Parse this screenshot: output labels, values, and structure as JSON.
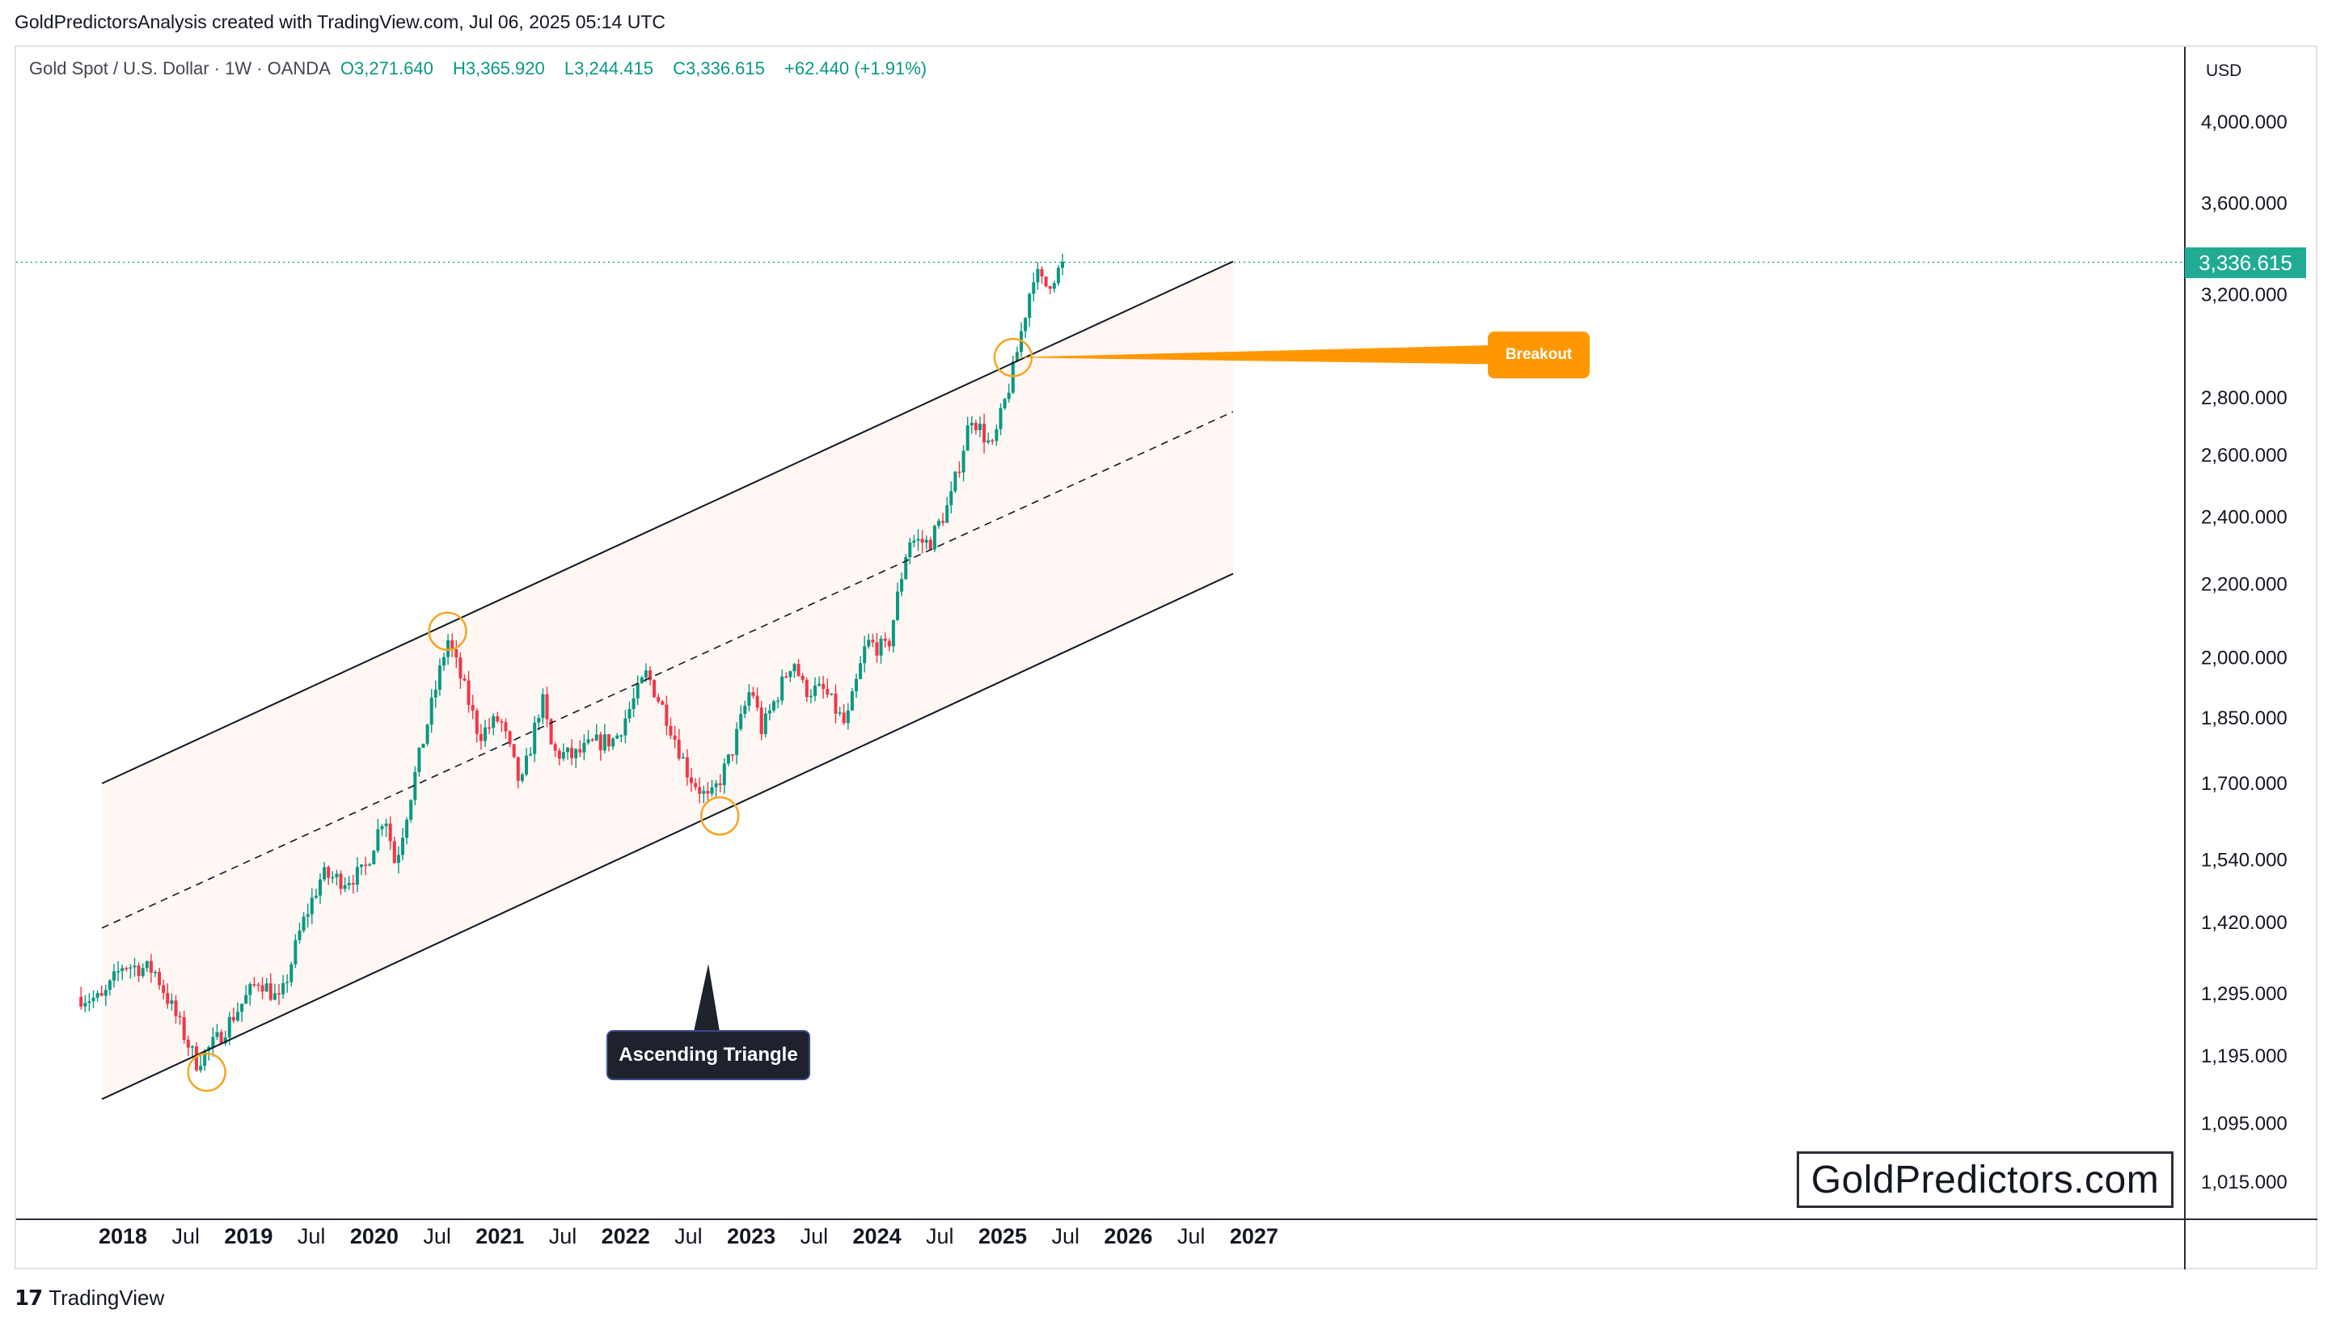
{
  "header": {
    "attribution": "GoldPredictorsAnalysis created with TradingView.com, Jul 06, 2025 05:14 UTC"
  },
  "legend": {
    "symbol": "Gold Spot / U.S. Dollar · 1W · OANDA",
    "open": "O3,271.640",
    "high": "H3,365.920",
    "low": "L3,244.415",
    "close": "C3,336.615",
    "change": "+62.440 (+1.91%)"
  },
  "price_axis": {
    "currency": "USD",
    "current_price_label": "3,336.615"
  },
  "annotations": {
    "ascending_triangle": "Ascending Triangle",
    "breakout": "Breakout"
  },
  "watermark": "GoldPredictors.com",
  "footer": {
    "brand": "TradingView"
  },
  "colors": {
    "up": "#089981",
    "down": "#f23645",
    "channel_fill": "#fdf3ef",
    "highlight_circle": "#f5a623",
    "current_price": "#22ab94"
  },
  "chart_data": {
    "type": "candlestick",
    "symbol": "XAU/USD",
    "timeframe": "1W",
    "y_scale": "log",
    "y_ticks": [
      "4,000.000",
      "3,600.000",
      "3,200.000",
      "2,800.000",
      "2,600.000",
      "2,400.000",
      "2,200.000",
      "2,000.000",
      "1,850.000",
      "1,700.000",
      "1,540.000",
      "1,420.000",
      "1,295.000",
      "1,195.000",
      "1,095.000",
      "1,015.000"
    ],
    "y_tick_values": [
      4000,
      3600,
      3200,
      2800,
      2600,
      2400,
      2200,
      2000,
      1850,
      1700,
      1540,
      1420,
      1295,
      1195,
      1095,
      1015
    ],
    "x_ticks": [
      "2018",
      "Jul",
      "2019",
      "Jul",
      "2020",
      "Jul",
      "2021",
      "Jul",
      "2022",
      "Jul",
      "2023",
      "Jul",
      "2024",
      "Jul",
      "2025",
      "Jul",
      "2026",
      "Jul",
      "2027"
    ],
    "price_path": [
      {
        "x": "2017-09",
        "y": 1290
      },
      {
        "x": "2017-11",
        "y": 1285
      },
      {
        "x": "2018-01",
        "y": 1345
      },
      {
        "x": "2018-04",
        "y": 1335
      },
      {
        "x": "2018-06",
        "y": 1260
      },
      {
        "x": "2018-08",
        "y": 1185
      },
      {
        "x": "2018-10",
        "y": 1220
      },
      {
        "x": "2018-12",
        "y": 1270
      },
      {
        "x": "2019-02",
        "y": 1320
      },
      {
        "x": "2019-04",
        "y": 1280
      },
      {
        "x": "2019-06",
        "y": 1410
      },
      {
        "x": "2019-08",
        "y": 1510
      },
      {
        "x": "2019-10",
        "y": 1500
      },
      {
        "x": "2019-12",
        "y": 1515
      },
      {
        "x": "2020-02",
        "y": 1640
      },
      {
        "x": "2020-03",
        "y": 1530
      },
      {
        "x": "2020-05",
        "y": 1730
      },
      {
        "x": "2020-08",
        "y": 2050
      },
      {
        "x": "2020-10",
        "y": 1890
      },
      {
        "x": "2020-11",
        "y": 1810
      },
      {
        "x": "2021-01",
        "y": 1850
      },
      {
        "x": "2021-03",
        "y": 1690
      },
      {
        "x": "2021-05",
        "y": 1900
      },
      {
        "x": "2021-06",
        "y": 1770
      },
      {
        "x": "2021-08",
        "y": 1760
      },
      {
        "x": "2021-10",
        "y": 1790
      },
      {
        "x": "2021-12",
        "y": 1800
      },
      {
        "x": "2022-03",
        "y": 1960
      },
      {
        "x": "2022-05",
        "y": 1850
      },
      {
        "x": "2022-07",
        "y": 1720
      },
      {
        "x": "2022-09",
        "y": 1660
      },
      {
        "x": "2022-11",
        "y": 1760
      },
      {
        "x": "2023-01",
        "y": 1930
      },
      {
        "x": "2023-02",
        "y": 1820
      },
      {
        "x": "2023-05",
        "y": 2000
      },
      {
        "x": "2023-06",
        "y": 1920
      },
      {
        "x": "2023-08",
        "y": 1915
      },
      {
        "x": "2023-10",
        "y": 1830
      },
      {
        "x": "2023-12",
        "y": 2040
      },
      {
        "x": "2024-02",
        "y": 2020
      },
      {
        "x": "2024-04",
        "y": 2330
      },
      {
        "x": "2024-06",
        "y": 2320
      },
      {
        "x": "2024-08",
        "y": 2450
      },
      {
        "x": "2024-10",
        "y": 2740
      },
      {
        "x": "2024-12",
        "y": 2620
      },
      {
        "x": "2025-02",
        "y": 2900
      },
      {
        "x": "2025-04",
        "y": 3300
      },
      {
        "x": "2025-05",
        "y": 3230
      },
      {
        "x": "2025-07",
        "y": 3336.615
      }
    ],
    "channel": {
      "upper": [
        {
          "x": "2017-11",
          "y": 1700
        },
        {
          "x": "2026-11",
          "y": 3340
        }
      ],
      "middle": [
        {
          "x": "2017-11",
          "y": 1410
        },
        {
          "x": "2026-11",
          "y": 2750
        }
      ],
      "lower": [
        {
          "x": "2017-11",
          "y": 1130
        },
        {
          "x": "2026-11",
          "y": 2230
        }
      ]
    },
    "highlighted_points": [
      {
        "x": "2018-09",
        "y": 1170
      },
      {
        "x": "2020-08",
        "y": 2070
      },
      {
        "x": "2022-10",
        "y": 1630
      },
      {
        "x": "2025-02",
        "y": 2950
      }
    ],
    "current_price": 3336.615
  }
}
